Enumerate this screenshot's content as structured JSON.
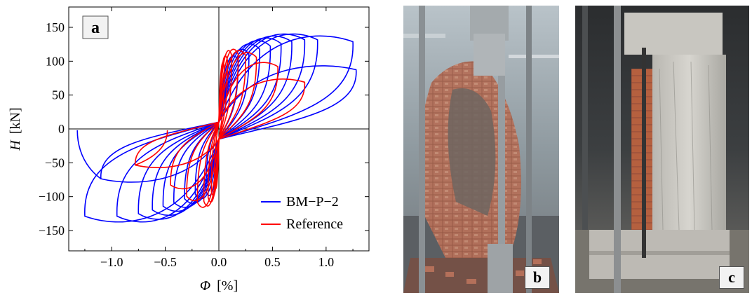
{
  "chart_data": {
    "type": "line",
    "panel_label": "a",
    "xlabel_symbol": "Φ",
    "xlabel_unit": "[%]",
    "ylabel_symbol": "H",
    "ylabel_unit": "[kN]",
    "xlim": [
      -1.4,
      1.4
    ],
    "ylim": [
      -180,
      180
    ],
    "x_ticks": [
      -1.0,
      -0.5,
      0.0,
      0.5,
      1.0
    ],
    "x_tick_labels": [
      "−1.0",
      "−0.5",
      "0.0",
      "0.5",
      "1.0"
    ],
    "y_ticks": [
      -150,
      -100,
      -50,
      0,
      50,
      100,
      150
    ],
    "y_tick_labels": [
      "−150",
      "−100",
      "−50",
      "0",
      "50",
      "100",
      "150"
    ],
    "grid": false,
    "legend_position": "bottom-right",
    "series": [
      {
        "name": "BM−P−2",
        "color": "#0000ff",
        "loops": [
          {
            "xmax": 0.18,
            "ymax": 110,
            "xmin": -0.12,
            "ymin": -100
          },
          {
            "xmax": 0.28,
            "ymax": 120,
            "xmin": -0.22,
            "ymin": -105
          },
          {
            "xmax": 0.38,
            "ymax": 128,
            "xmin": -0.32,
            "ymin": -112
          },
          {
            "xmax": 0.48,
            "ymax": 133,
            "xmin": -0.42,
            "ymin": -118
          },
          {
            "xmax": 0.58,
            "ymax": 137,
            "xmin": -0.52,
            "ymin": -124
          },
          {
            "xmax": 0.68,
            "ymax": 140,
            "xmin": -0.62,
            "ymin": -130
          },
          {
            "xmax": 0.8,
            "ymax": 143,
            "xmin": -0.75,
            "ymin": -136
          },
          {
            "xmax": 0.92,
            "ymax": 143,
            "xmin": -0.95,
            "ymin": -140
          },
          {
            "xmax": 1.25,
            "ymax": 140,
            "xmin": -1.25,
            "ymin": -140
          },
          {
            "xmax": 1.28,
            "ymax": 95,
            "xmin": -1.1,
            "ymin": -80
          }
        ],
        "final_point": {
          "x": -1.32,
          "y": -2
        }
      },
      {
        "name": "Reference",
        "color": "#ff0000",
        "loops": [
          {
            "xmax": 0.05,
            "ymax": 100,
            "xmin": -0.04,
            "ymin": -90
          },
          {
            "xmax": 0.08,
            "ymax": 110,
            "xmin": -0.07,
            "ymin": -100
          },
          {
            "xmax": 0.12,
            "ymax": 118,
            "xmin": -0.1,
            "ymin": -110
          },
          {
            "xmax": 0.18,
            "ymax": 120,
            "xmin": -0.14,
            "ymin": -116
          },
          {
            "xmax": 0.25,
            "ymax": 118,
            "xmin": -0.2,
            "ymin": -118
          },
          {
            "xmax": 0.35,
            "ymax": 115,
            "xmin": -0.3,
            "ymin": -108
          },
          {
            "xmax": 0.55,
            "ymax": 100,
            "xmin": -0.45,
            "ymin": -90
          },
          {
            "xmax": 0.8,
            "ymax": 75,
            "xmin": -0.78,
            "ymin": -58
          }
        ],
        "final_point": {
          "x": -0.48,
          "y": -2
        }
      }
    ]
  },
  "photos": [
    {
      "label": "b"
    },
    {
      "label": "c"
    }
  ]
}
